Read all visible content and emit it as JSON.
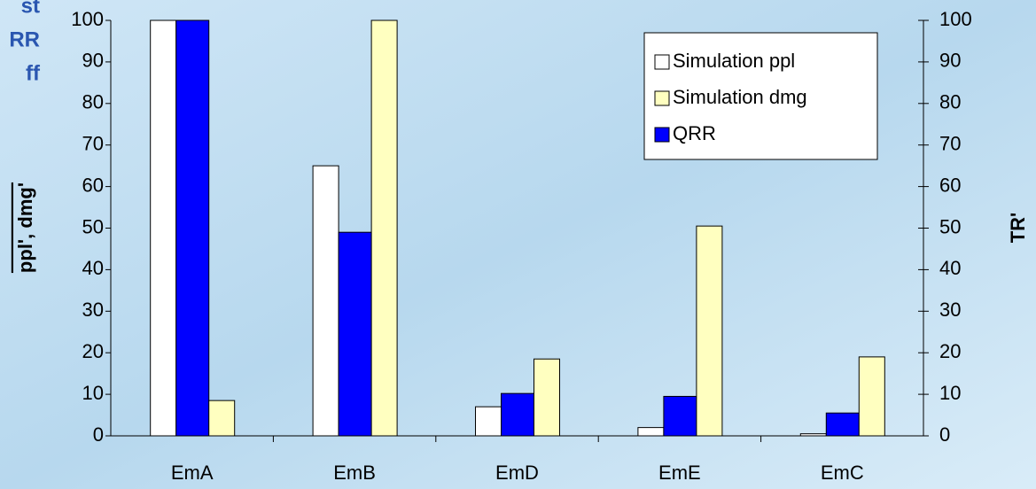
{
  "chart_data": {
    "type": "bar",
    "annotations": [
      "st",
      "RR",
      "ff"
    ],
    "y_label": "ppl', dmg'",
    "y2_label": "TR'",
    "categories": [
      "EmA",
      "EmB",
      "EmD",
      "EmE",
      "EmC"
    ],
    "series": [
      {
        "name": "Simulation ppl",
        "color": "#ffffff",
        "values": [
          100,
          65,
          7,
          2,
          0.5
        ]
      },
      {
        "name": "Simulation dmg",
        "color": "#ffffc0",
        "values": [
          8.5,
          100,
          18.5,
          50.5,
          19
        ]
      },
      {
        "name": "QRR",
        "color": "#0000ff",
        "axis": "y2",
        "values": [
          100,
          49,
          10.2,
          9.5,
          5.5
        ]
      }
    ],
    "ylim": [
      0,
      100
    ],
    "yticks": [
      0,
      10,
      20,
      30,
      40,
      50,
      60,
      70,
      80,
      90,
      100
    ],
    "y2lim": [
      0,
      100
    ],
    "y2ticks": [
      0,
      10,
      20,
      30,
      40,
      50,
      60,
      70,
      80,
      90,
      100
    ],
    "legend": "top-right"
  }
}
